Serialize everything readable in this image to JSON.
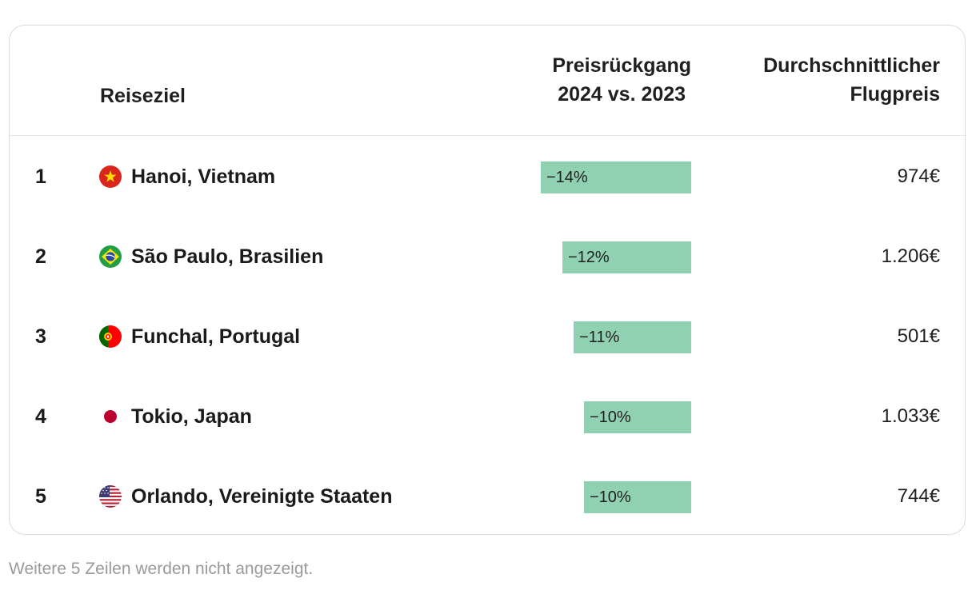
{
  "table": {
    "headers": {
      "destination": "Reiseziel",
      "drop_line1": "Preisrückgang",
      "drop_line2": "2024 vs. 2023",
      "price_line1": "Durchschnittlicher",
      "price_line2": "Flugpreis"
    },
    "rows": [
      {
        "rank": "1",
        "flag": "vietnam-flag-icon",
        "destination": "Hanoi, Vietnam",
        "drop_label": "−14%",
        "drop_pct": 14,
        "price": "974€"
      },
      {
        "rank": "2",
        "flag": "brazil-flag-icon",
        "destination": "São Paulo, Brasilien",
        "drop_label": "−12%",
        "drop_pct": 12,
        "price": "1.206€"
      },
      {
        "rank": "3",
        "flag": "portugal-flag-icon",
        "destination": "Funchal, Portugal",
        "drop_label": "−11%",
        "drop_pct": 11,
        "price": "501€"
      },
      {
        "rank": "4",
        "flag": "japan-flag-icon",
        "destination": "Tokio, Japan",
        "drop_label": "−10%",
        "drop_pct": 10,
        "price": "1.033€"
      },
      {
        "rank": "5",
        "flag": "usa-flag-icon",
        "destination": "Orlando, Vereinigte Staaten",
        "drop_label": "−10%",
        "drop_pct": 10,
        "price": "744€"
      }
    ],
    "bar_color": "#8fd1b1"
  },
  "footnote": "Weitere 5 Zeilen werden nicht angezeigt."
}
